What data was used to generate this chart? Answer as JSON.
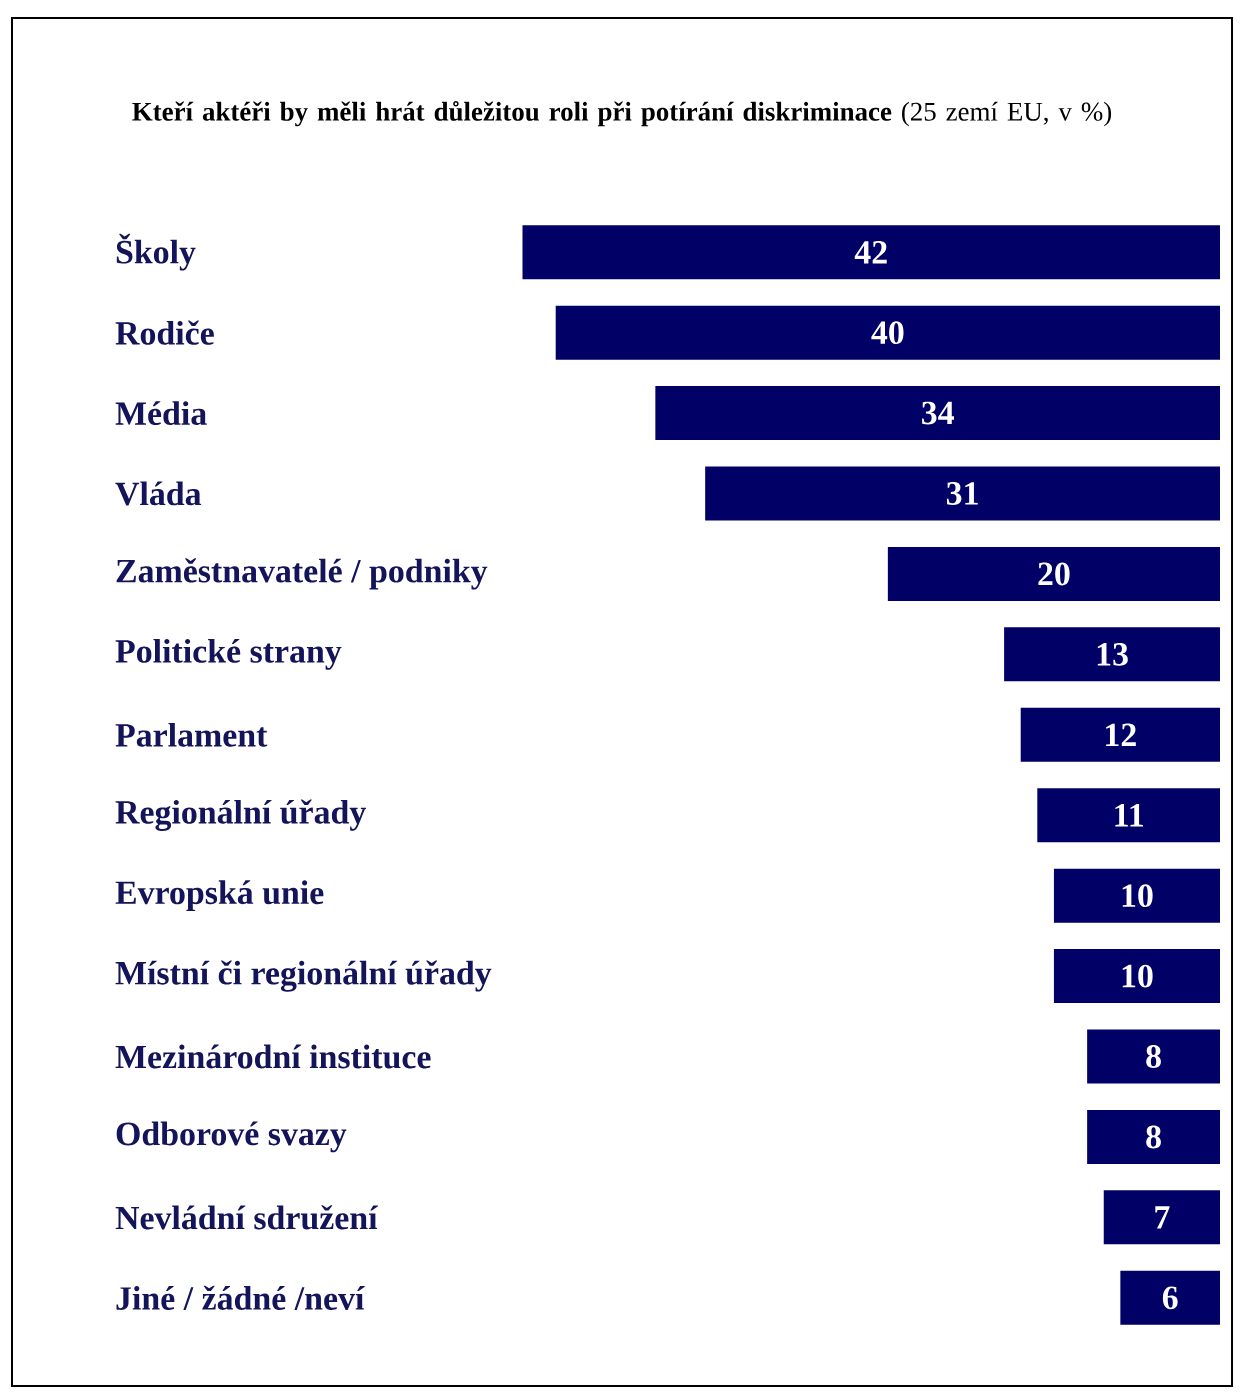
{
  "chart_data": {
    "type": "bar",
    "orientation": "horizontal",
    "title": "**Kteří aktéři by měli hrát důležitou roli při potírání diskriminace** (25 zemí EU, v %)",
    "categories": [
      "Školy",
      "Rodiče",
      "Média",
      "Vláda",
      "Zaměstnavatelé / podniky",
      "Politické strany",
      "Parlament",
      "Regionální úřady",
      "Evropská unie",
      "Místní či regionální úřady",
      "Mezinárodní instituce",
      "Odborové svazy",
      "Nevládní sdružení",
      "Jiné / žádné /neví"
    ],
    "values": [
      42,
      40,
      34,
      31,
      20,
      13,
      12,
      11,
      10,
      10,
      8,
      8,
      7,
      6
    ],
    "color": "#000066",
    "data_labels": true
  }
}
